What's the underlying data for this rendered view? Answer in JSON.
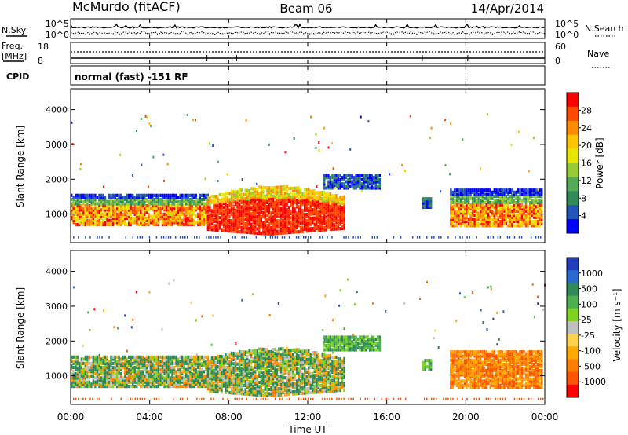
{
  "header": {
    "station": "McMurdo (fitACF)",
    "beam": "Beam 06",
    "date": "14/Apr/2014"
  },
  "noise_panel": {
    "left_label": "N.Sky",
    "right_label": "N.Search",
    "left_ticks": [
      "10^5",
      "10^0"
    ],
    "right_ticks": [
      "10^5",
      "10^0"
    ]
  },
  "freq_panel": {
    "left_label_1": "Freq.",
    "left_label_2": "[MHz]",
    "right_label": "Nave",
    "left_ticks": [
      "18",
      "8"
    ],
    "right_ticks": [
      "60",
      "0"
    ]
  },
  "cpid": {
    "label": "CPID",
    "text": "normal (fast) -151 RF"
  },
  "chart_data": [
    {
      "type": "heatmap",
      "name": "power",
      "ylabel": "Slant Range [km]",
      "ylim": [
        180,
        4600
      ],
      "yticks": [
        1000,
        2000,
        3000,
        4000
      ],
      "xlim": [
        0,
        24
      ],
      "colorbar": {
        "label": "Power [dB]",
        "ticks": [
          "28",
          "24",
          "20",
          "16",
          "12",
          "8",
          "4"
        ],
        "colors": [
          "#ff0000",
          "#ff4a00",
          "#ff8c00",
          "#ffc400",
          "#e6e600",
          "#99cc33",
          "#55aa55",
          "#2e8b57",
          "#2255bb",
          "#0000ff"
        ]
      }
    },
    {
      "type": "heatmap",
      "name": "velocity",
      "ylabel": "Slant Range [km]",
      "ylim": [
        180,
        4600
      ],
      "yticks": [
        1000,
        2000,
        3000,
        4000
      ],
      "xlim": [
        0,
        24
      ],
      "colorbar": {
        "label": "Velocity [m s⁻¹]",
        "ticks": [
          "1000",
          "500",
          "100",
          "25",
          "-25",
          "-100",
          "-500",
          "-1000"
        ],
        "colors": [
          "#1f3fbf",
          "#2a6ad0",
          "#2e8b57",
          "#4caf50",
          "#7ed321",
          "#c0c0c0",
          "#ffd24d",
          "#ffaa00",
          "#ff8000",
          "#ff5500",
          "#ff0000"
        ]
      }
    }
  ],
  "xaxis": {
    "title": "Time UT",
    "ticks": [
      "00:00",
      "04:00",
      "08:00",
      "12:00",
      "16:00",
      "20:00",
      "00:00"
    ]
  }
}
